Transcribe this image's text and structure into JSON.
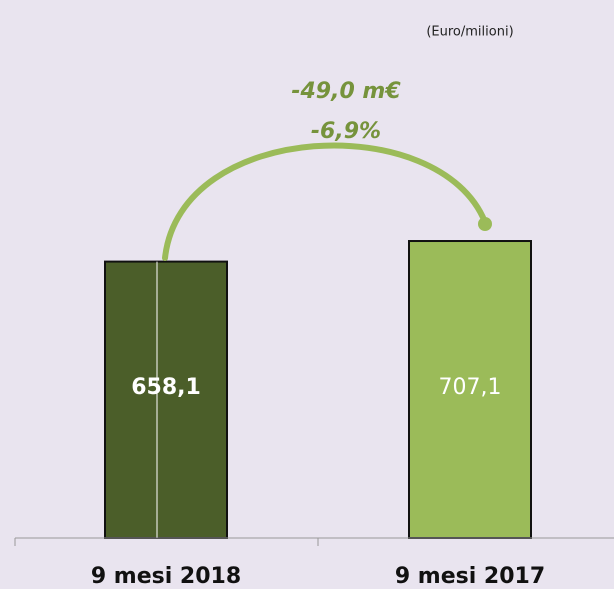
{
  "chart_data": {
    "type": "bar",
    "unit_label": "(Euro/milioni)",
    "annotations": [
      "-49,0 m€",
      "-6,9%"
    ],
    "categories": [
      "9 mesi 2018",
      "9 mesi 2017"
    ],
    "values": [
      658.1,
      707.1
    ],
    "value_labels": [
      "658,1",
      "707,1"
    ],
    "colors": [
      "#4b5e29",
      "#9bbb59"
    ],
    "ylim": [
      0,
      1000
    ]
  }
}
